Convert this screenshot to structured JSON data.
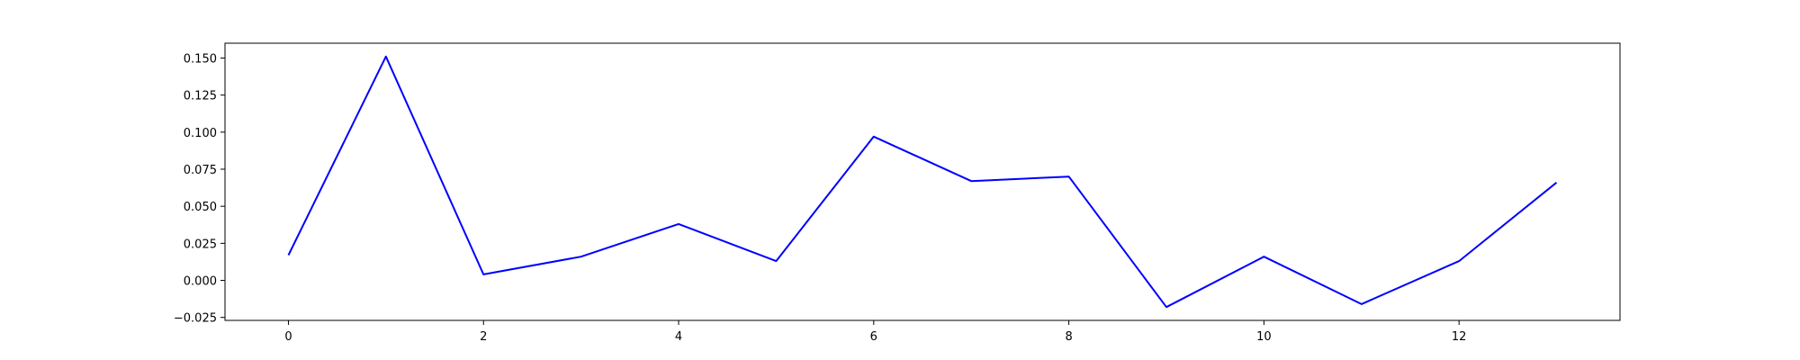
{
  "chart_data": {
    "type": "line",
    "title": "",
    "xlabel": "",
    "ylabel": "",
    "xlim": [
      -0.65,
      13.65
    ],
    "ylim": [
      -0.027,
      0.16
    ],
    "x_ticks": [
      0,
      2,
      4,
      6,
      8,
      10,
      12
    ],
    "x_tick_labels": [
      "0",
      "2",
      "4",
      "6",
      "8",
      "10",
      "12"
    ],
    "y_ticks": [
      -0.025,
      0.0,
      0.025,
      0.05,
      0.075,
      0.1,
      0.125,
      0.15
    ],
    "y_tick_labels": [
      "−0.025",
      "0.000",
      "0.025",
      "0.050",
      "0.075",
      "0.100",
      "0.125",
      "0.150"
    ],
    "grid": false,
    "series": [
      {
        "color": "#0000ff",
        "x": [
          0,
          1,
          2,
          3,
          4,
          5,
          6,
          7,
          8,
          9,
          10,
          11,
          12,
          13
        ],
        "values": [
          0.017,
          0.151,
          0.004,
          0.016,
          0.038,
          0.013,
          0.097,
          0.067,
          0.07,
          -0.018,
          0.016,
          -0.016,
          0.013,
          0.066
        ]
      }
    ]
  }
}
